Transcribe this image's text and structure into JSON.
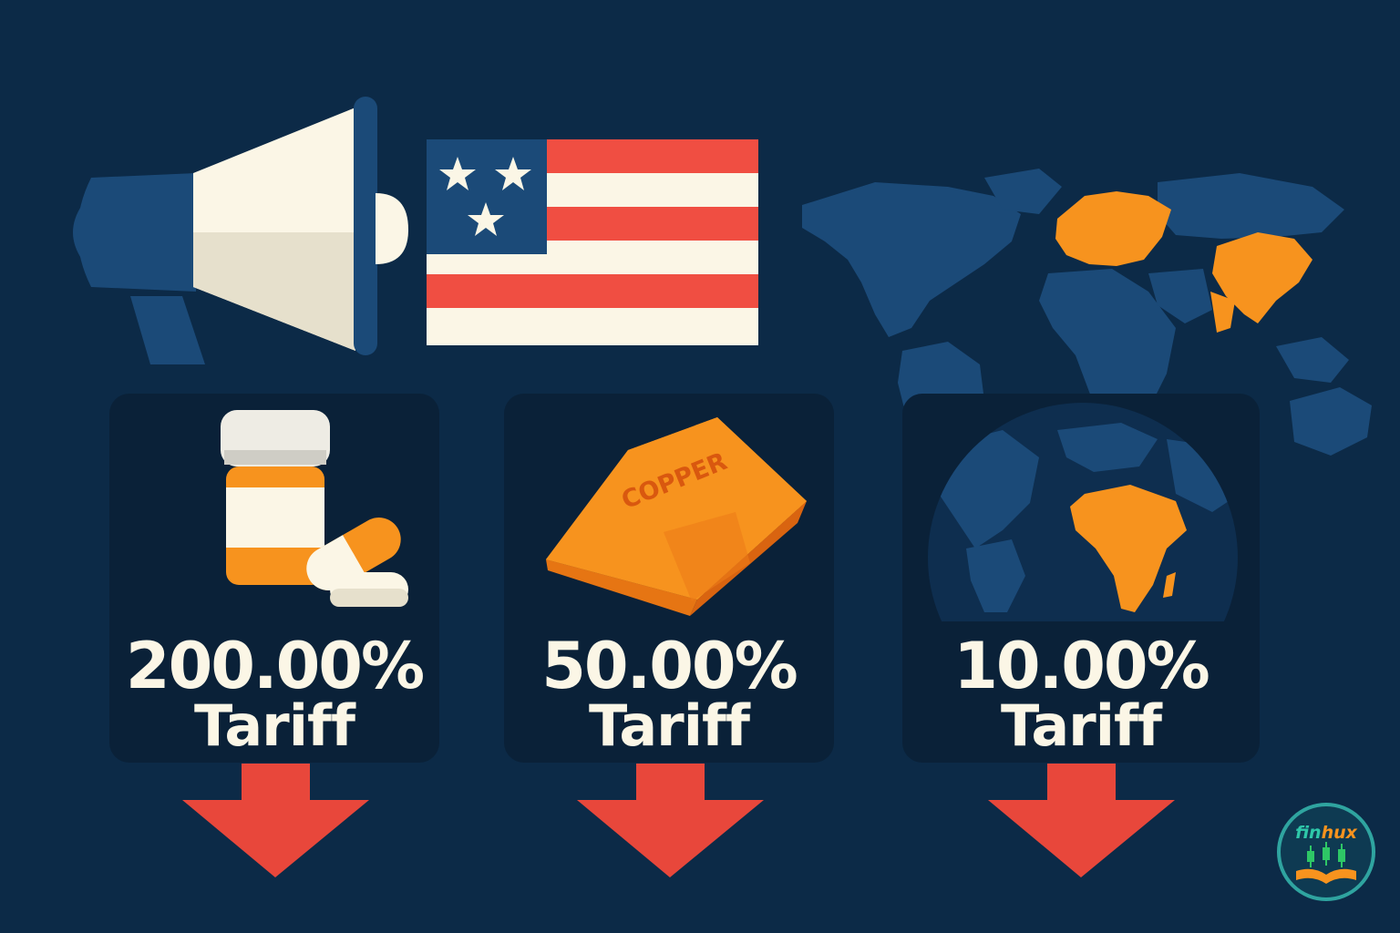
{
  "tariffs": [
    {
      "rate": "200.00%",
      "label": "Tariff",
      "icon": "medicine-bottle-icon"
    },
    {
      "rate": "50.00%",
      "label": "Tariff",
      "icon": "copper-bar-icon",
      "bar_text": "COPPER"
    },
    {
      "rate": "10.00%",
      "label": "Tariff",
      "icon": "globe-africa-icon"
    }
  ],
  "logo": {
    "text_fin": "fin",
    "text_hux": "hux"
  },
  "colors": {
    "background": "#0c2a47",
    "card": "#0a2138",
    "accent_orange": "#f7931e",
    "arrow_red": "#e8473b",
    "map_blue": "#1b4a78",
    "text": "#fbf6e6"
  }
}
